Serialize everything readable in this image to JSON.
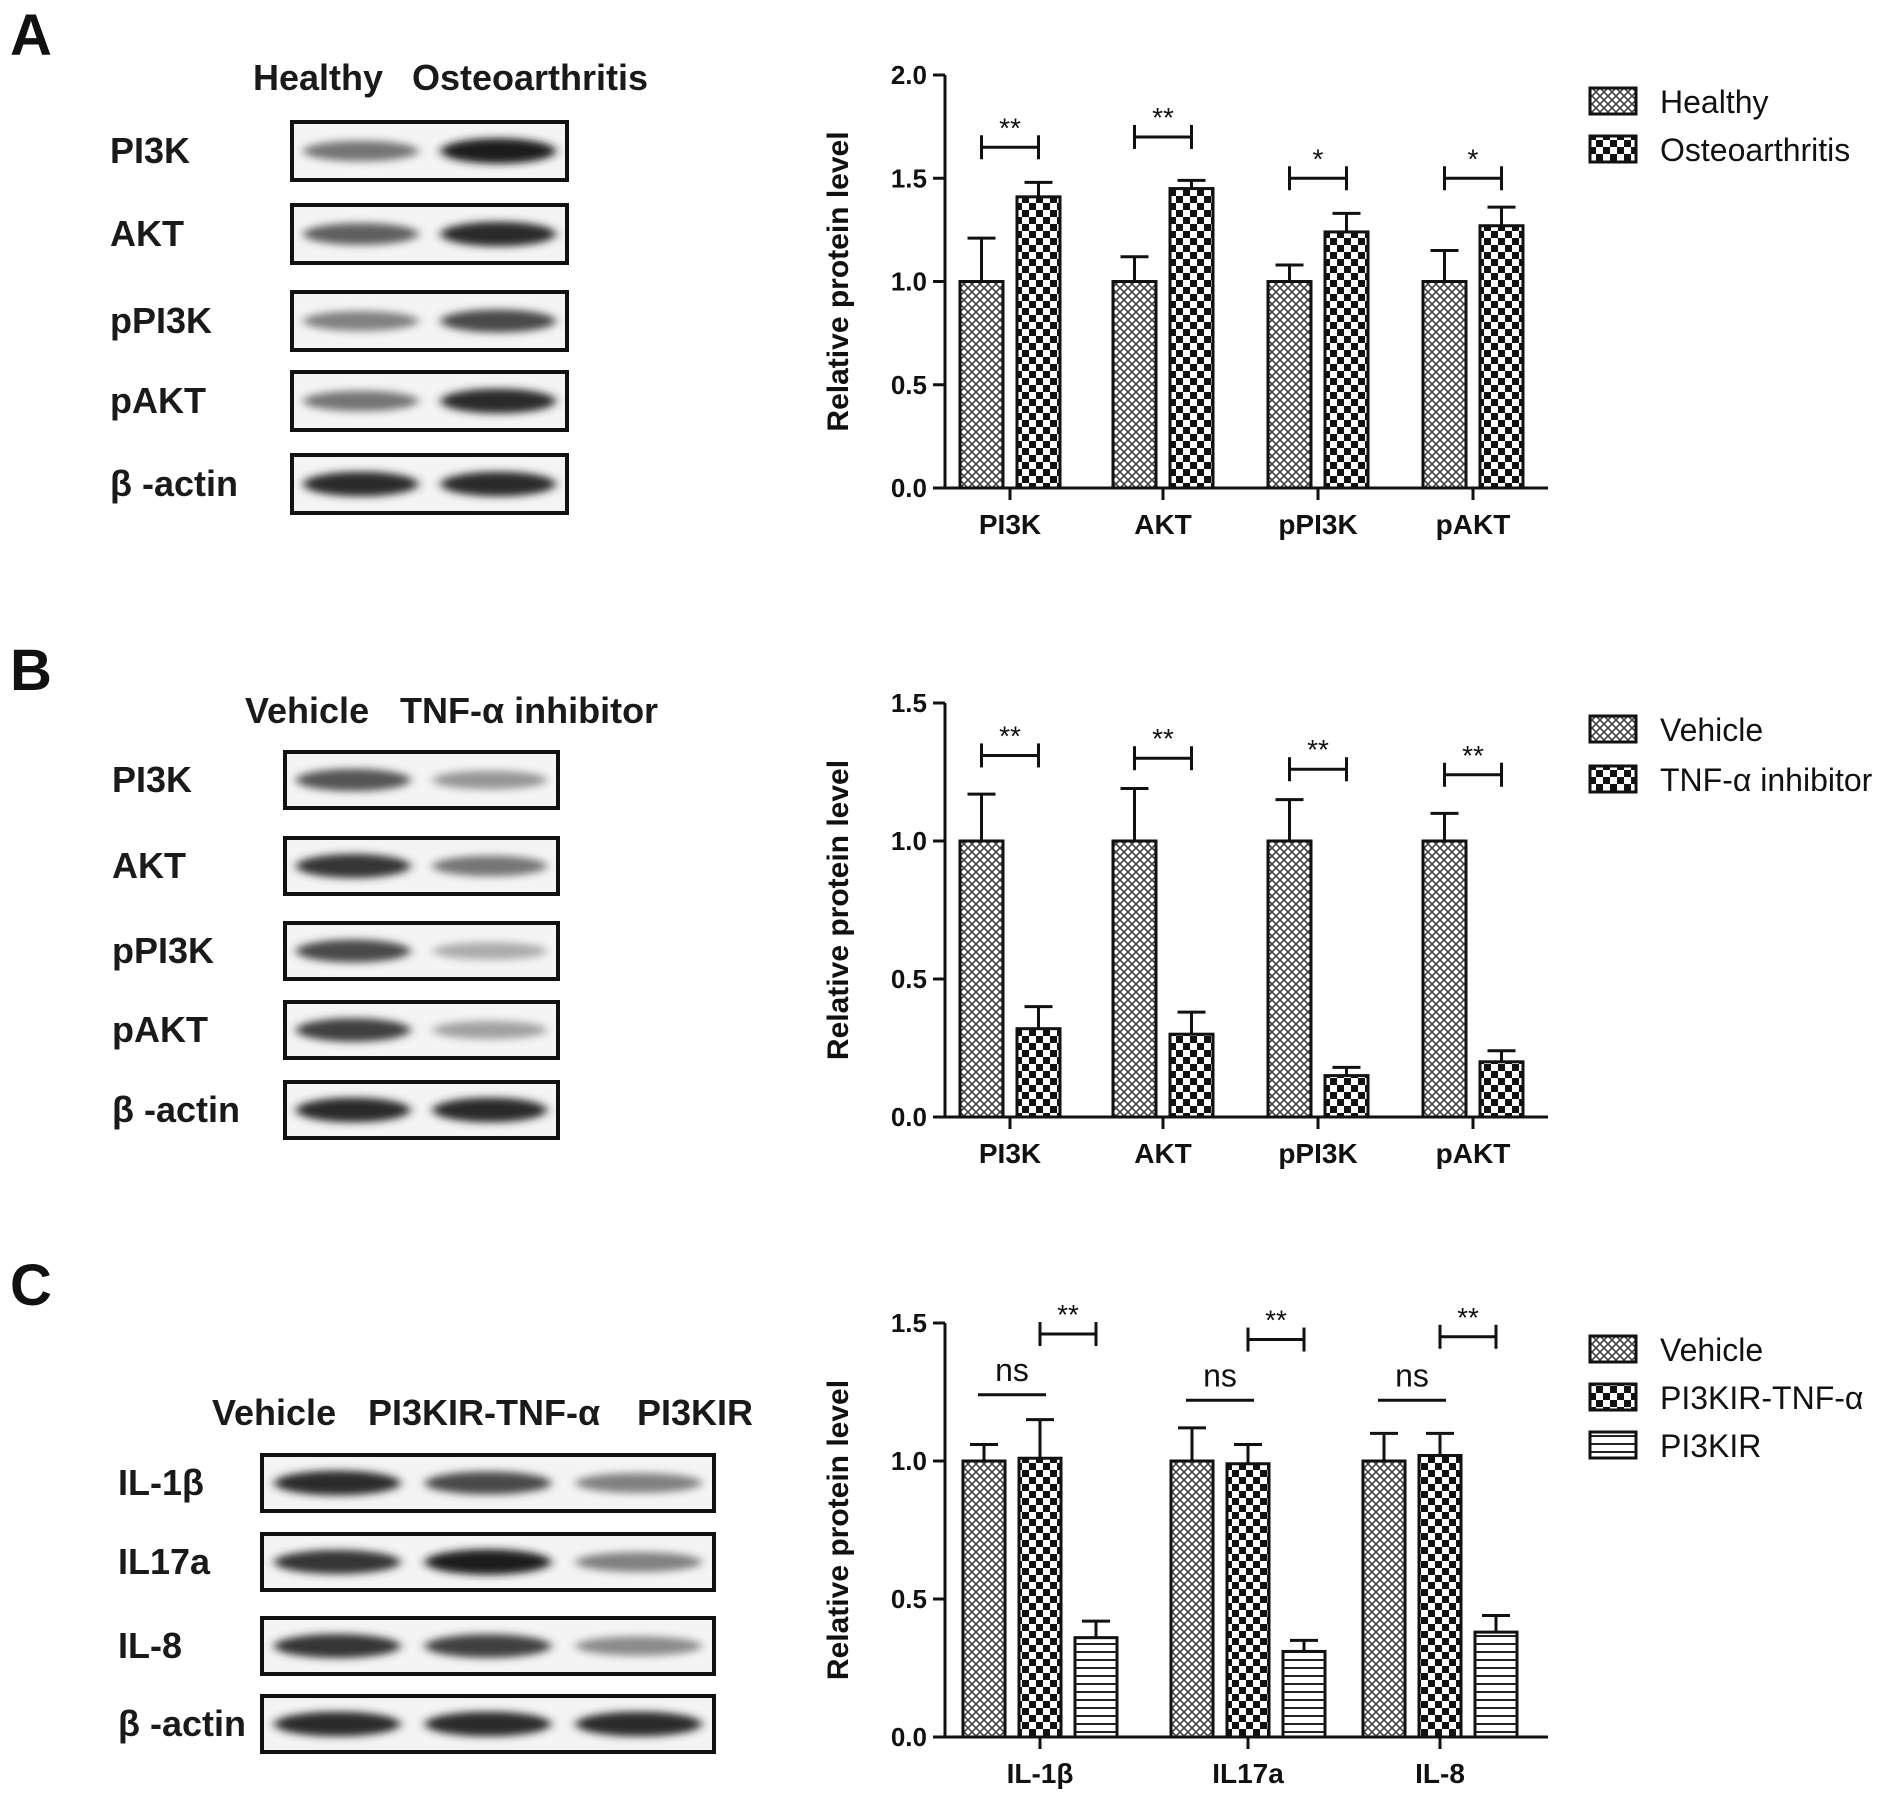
{
  "panels": [
    {
      "letter": "A",
      "blot": {
        "lanes": [
          "Healthy",
          "Osteoarthritis"
        ],
        "rows": [
          {
            "label": "PI3K",
            "intensity": [
              0.55,
              0.95
            ]
          },
          {
            "label": "AKT",
            "intensity": [
              0.65,
              0.9
            ]
          },
          {
            "label": "pPI3K",
            "intensity": [
              0.5,
              0.75
            ]
          },
          {
            "label": "pAKT",
            "intensity": [
              0.55,
              0.9
            ]
          },
          {
            "label": "β -actin",
            "intensity": [
              0.9,
              0.9
            ]
          }
        ]
      }
    },
    {
      "letter": "B",
      "blot": {
        "lanes": [
          "Vehicle",
          "TNF-α  inhibitor"
        ],
        "rows": [
          {
            "label": "PI3K",
            "intensity": [
              0.7,
              0.4
            ]
          },
          {
            "label": "AKT",
            "intensity": [
              0.85,
              0.55
            ]
          },
          {
            "label": "pPI3K",
            "intensity": [
              0.75,
              0.3
            ]
          },
          {
            "label": "pAKT",
            "intensity": [
              0.8,
              0.35
            ]
          },
          {
            "label": "β -actin",
            "intensity": [
              0.9,
              0.9
            ]
          }
        ]
      }
    },
    {
      "letter": "C",
      "blot": {
        "lanes": [
          "Vehicle",
          "PI3KIR-TNF-α",
          "PI3KIR"
        ],
        "rows": [
          {
            "label": "IL-1β",
            "intensity": [
              0.9,
              0.75,
              0.5
            ]
          },
          {
            "label": "IL17a",
            "intensity": [
              0.85,
              0.95,
              0.5
            ]
          },
          {
            "label": "IL-8",
            "intensity": [
              0.85,
              0.8,
              0.45
            ]
          },
          {
            "label": "β -actin",
            "intensity": [
              0.9,
              0.9,
              0.9
            ]
          }
        ]
      }
    }
  ],
  "chart_data": [
    {
      "type": "bar",
      "panel": "A",
      "title": "",
      "xlabel": "",
      "ylabel": "Relative protein level",
      "ylim": [
        0,
        2.0
      ],
      "yticks": [
        "0.0",
        "0.5",
        "1.0",
        "1.5",
        "2.0"
      ],
      "categories": [
        "PI3K",
        "AKT",
        "pPI3K",
        "pAKT"
      ],
      "series": [
        {
          "name": "Healthy",
          "pattern": "grid",
          "values": [
            1.0,
            1.0,
            1.0,
            1.0
          ],
          "errors": [
            0.21,
            0.12,
            0.08,
            0.15
          ]
        },
        {
          "name": "Osteoarthritis",
          "pattern": "checker",
          "values": [
            1.41,
            1.45,
            1.24,
            1.27
          ],
          "errors": [
            0.07,
            0.04,
            0.09,
            0.09
          ]
        }
      ],
      "significance": [
        {
          "category": 0,
          "from": 0,
          "to": 1,
          "y": 1.65,
          "label": "**"
        },
        {
          "category": 1,
          "from": 0,
          "to": 1,
          "y": 1.7,
          "label": "**"
        },
        {
          "category": 2,
          "from": 0,
          "to": 1,
          "y": 1.5,
          "label": "*"
        },
        {
          "category": 3,
          "from": 0,
          "to": 1,
          "y": 1.5,
          "label": "*"
        }
      ],
      "legend_position": "top-right"
    },
    {
      "type": "bar",
      "panel": "B",
      "title": "",
      "xlabel": "",
      "ylabel": "Relative protein level",
      "ylim": [
        0,
        1.5
      ],
      "yticks": [
        "0.0",
        "0.5",
        "1.0",
        "1.5"
      ],
      "categories": [
        "PI3K",
        "AKT",
        "pPI3K",
        "pAKT"
      ],
      "series": [
        {
          "name": "Vehicle",
          "pattern": "grid",
          "values": [
            1.0,
            1.0,
            1.0,
            1.0
          ],
          "errors": [
            0.17,
            0.19,
            0.15,
            0.1
          ]
        },
        {
          "name": "TNF-α  inhibitor",
          "pattern": "checker",
          "values": [
            0.32,
            0.3,
            0.15,
            0.2
          ],
          "errors": [
            0.08,
            0.08,
            0.03,
            0.04
          ]
        }
      ],
      "significance": [
        {
          "category": 0,
          "from": 0,
          "to": 1,
          "y": 1.31,
          "label": "**"
        },
        {
          "category": 1,
          "from": 0,
          "to": 1,
          "y": 1.3,
          "label": "**"
        },
        {
          "category": 2,
          "from": 0,
          "to": 1,
          "y": 1.26,
          "label": "**"
        },
        {
          "category": 3,
          "from": 0,
          "to": 1,
          "y": 1.24,
          "label": "**"
        }
      ],
      "legend_position": "top-right"
    },
    {
      "type": "bar",
      "panel": "C",
      "title": "",
      "xlabel": "",
      "ylabel": "Relative protein level",
      "ylim": [
        0,
        1.5
      ],
      "yticks": [
        "0.0",
        "0.5",
        "1.0",
        "1.5"
      ],
      "categories": [
        "IL-1β",
        "IL17a",
        "IL-8"
      ],
      "series": [
        {
          "name": "Vehicle",
          "pattern": "grid",
          "values": [
            1.0,
            1.0,
            1.0
          ],
          "errors": [
            0.06,
            0.12,
            0.1
          ]
        },
        {
          "name": "PI3KIR-TNF-α",
          "pattern": "checker",
          "values": [
            1.01,
            0.99,
            1.02
          ],
          "errors": [
            0.14,
            0.07,
            0.08
          ]
        },
        {
          "name": "PI3KIR",
          "pattern": "hlines",
          "values": [
            0.36,
            0.31,
            0.38
          ],
          "errors": [
            0.06,
            0.04,
            0.06
          ]
        }
      ],
      "significance": [
        {
          "category": 0,
          "from": 1,
          "to": 2,
          "y": 1.46,
          "label": "**"
        },
        {
          "category": 1,
          "from": 1,
          "to": 2,
          "y": 1.44,
          "label": "**"
        },
        {
          "category": 2,
          "from": 1,
          "to": 2,
          "y": 1.45,
          "label": "**"
        },
        {
          "category": 0,
          "from": 0,
          "to": 1,
          "y": 1.24,
          "label": "ns",
          "plain": true
        },
        {
          "category": 1,
          "from": 0,
          "to": 1,
          "y": 1.22,
          "label": "ns",
          "plain": true
        },
        {
          "category": 2,
          "from": 0,
          "to": 1,
          "y": 1.22,
          "label": "ns",
          "plain": true
        }
      ],
      "legend_position": "top-right"
    }
  ]
}
